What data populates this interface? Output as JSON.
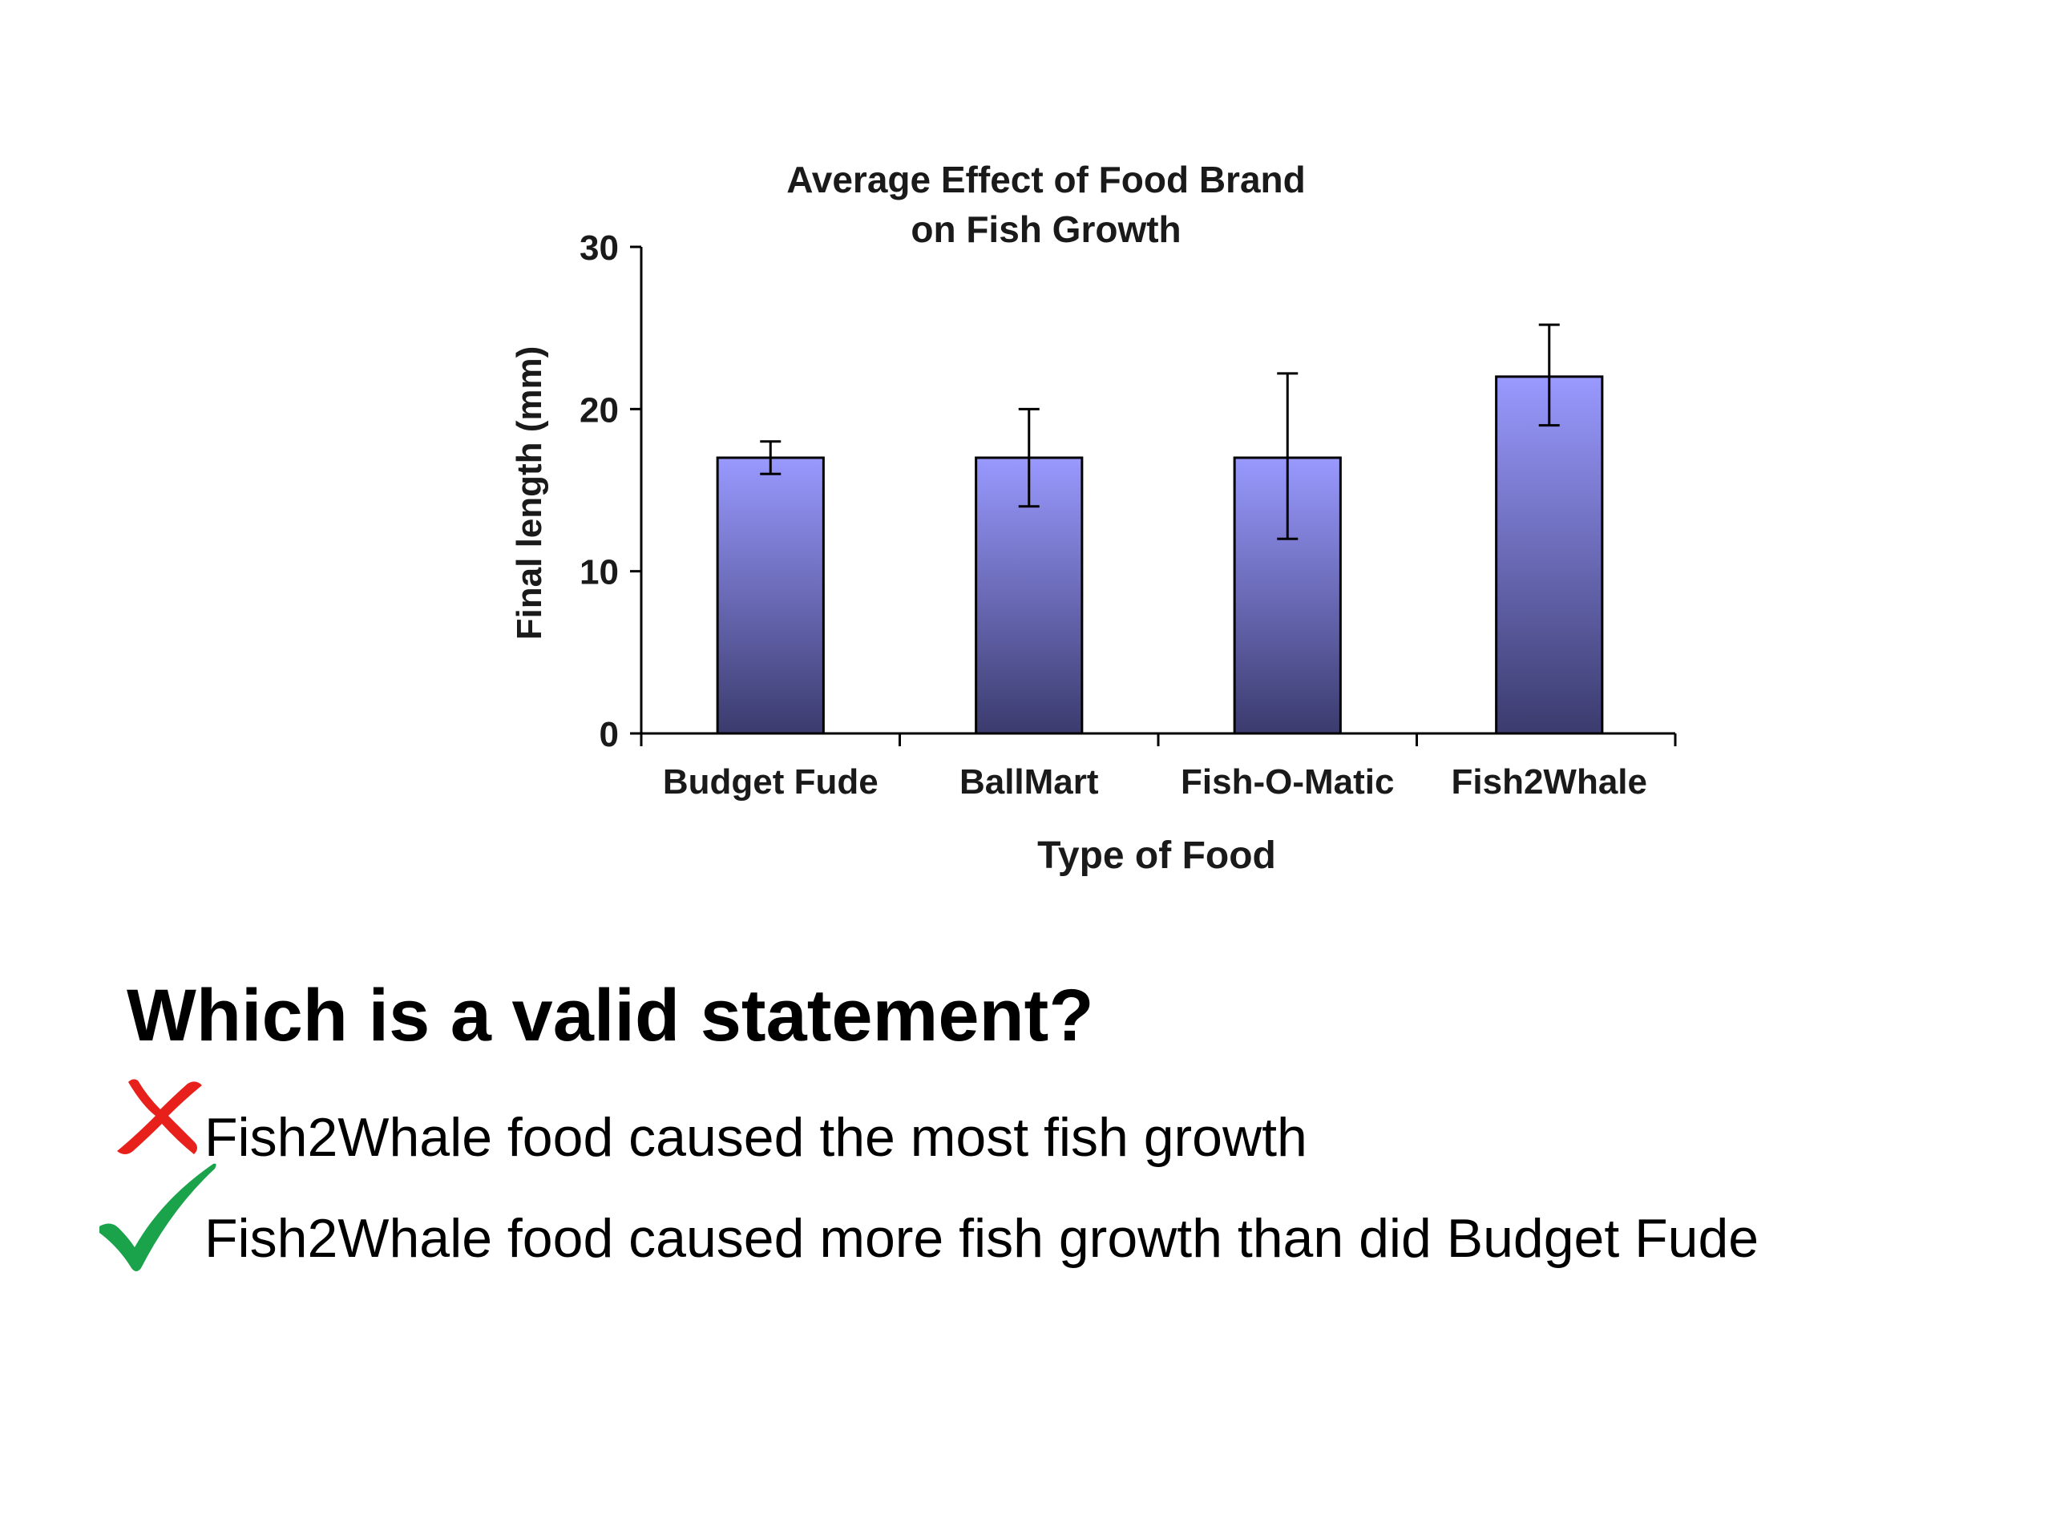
{
  "chart_data": {
    "type": "bar",
    "title": [
      "Average Effect of Food Brand",
      "on Fish Growth"
    ],
    "xlabel": "Type of Food",
    "ylabel": "Final length (mm)",
    "categories": [
      "Budget Fude",
      "BallMart",
      "Fish-O-Matic",
      "Fish2Whale"
    ],
    "values": [
      17,
      17,
      17,
      22
    ],
    "error_bars": [
      {
        "low": 16,
        "high": 18
      },
      {
        "low": 14,
        "high": 20
      },
      {
        "low": 12,
        "high": 22.2
      },
      {
        "low": 19,
        "high": 25.2
      }
    ],
    "yticks": [
      0,
      10,
      20,
      30
    ],
    "ylim": [
      0,
      30
    ],
    "grid": false,
    "legend": "none",
    "bar_gradient": [
      "#9999ff",
      "#3b3b6e"
    ]
  },
  "question": {
    "text": "Which is a valid statement?"
  },
  "options": [
    {
      "text": "Fish2Whale food caused the most fish growth",
      "mark": "cross-icon",
      "mark_color": "#e8201c"
    },
    {
      "text": "Fish2Whale food caused more fish growth than did Budget Fude",
      "mark": "check-icon",
      "mark_color": "#1aa34a"
    }
  ]
}
